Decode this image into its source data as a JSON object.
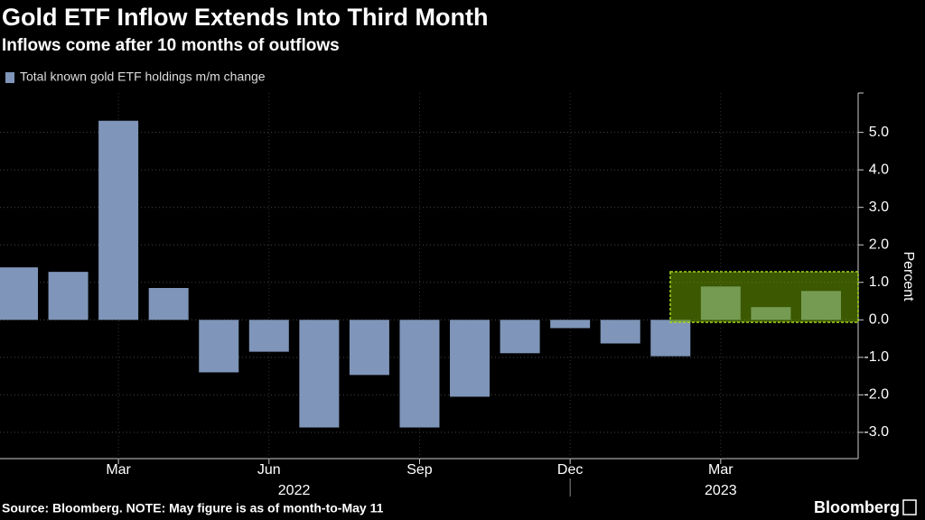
{
  "chart_data": {
    "type": "bar",
    "title": "Gold ETF Inflow Extends Into Third Month",
    "subtitle": "Inflows come after 10 months of outflows",
    "source": "Source: Bloomberg. NOTE: May figure is as of month-to-May 11",
    "brand": "Bloomberg",
    "y_label": "Percent",
    "legend": "Total known gold ETF holdings m/m change",
    "color": "#7f95b9",
    "grid": true,
    "categories": [
      null,
      null,
      "Mar",
      null,
      null,
      "Jun",
      null,
      null,
      "Sep",
      null,
      null,
      "Dec",
      null,
      null,
      "Mar",
      null,
      null
    ],
    "years": [
      "2022",
      "2023"
    ],
    "values": [
      1.4,
      1.28,
      5.31,
      0.85,
      -1.4,
      -0.85,
      -2.87,
      -1.47,
      -2.87,
      -2.05,
      -0.89,
      -0.22,
      -0.63,
      -0.97,
      0.89,
      0.34,
      0.77
    ],
    "ylim": [
      -3.7,
      6.05
    ],
    "yticks": [
      {
        "value": -3,
        "label": "-3.0"
      },
      {
        "value": -2,
        "label": "-2.0"
      },
      {
        "value": -1,
        "label": "-1.0"
      },
      {
        "value": 0,
        "label": "0.0"
      },
      {
        "value": 1,
        "label": "1.0"
      },
      {
        "value": 2,
        "label": "2.0"
      },
      {
        "value": 3,
        "label": "3.0"
      },
      {
        "value": 4,
        "label": "4.0"
      },
      {
        "value": 5,
        "label": "5.0"
      }
    ]
  }
}
